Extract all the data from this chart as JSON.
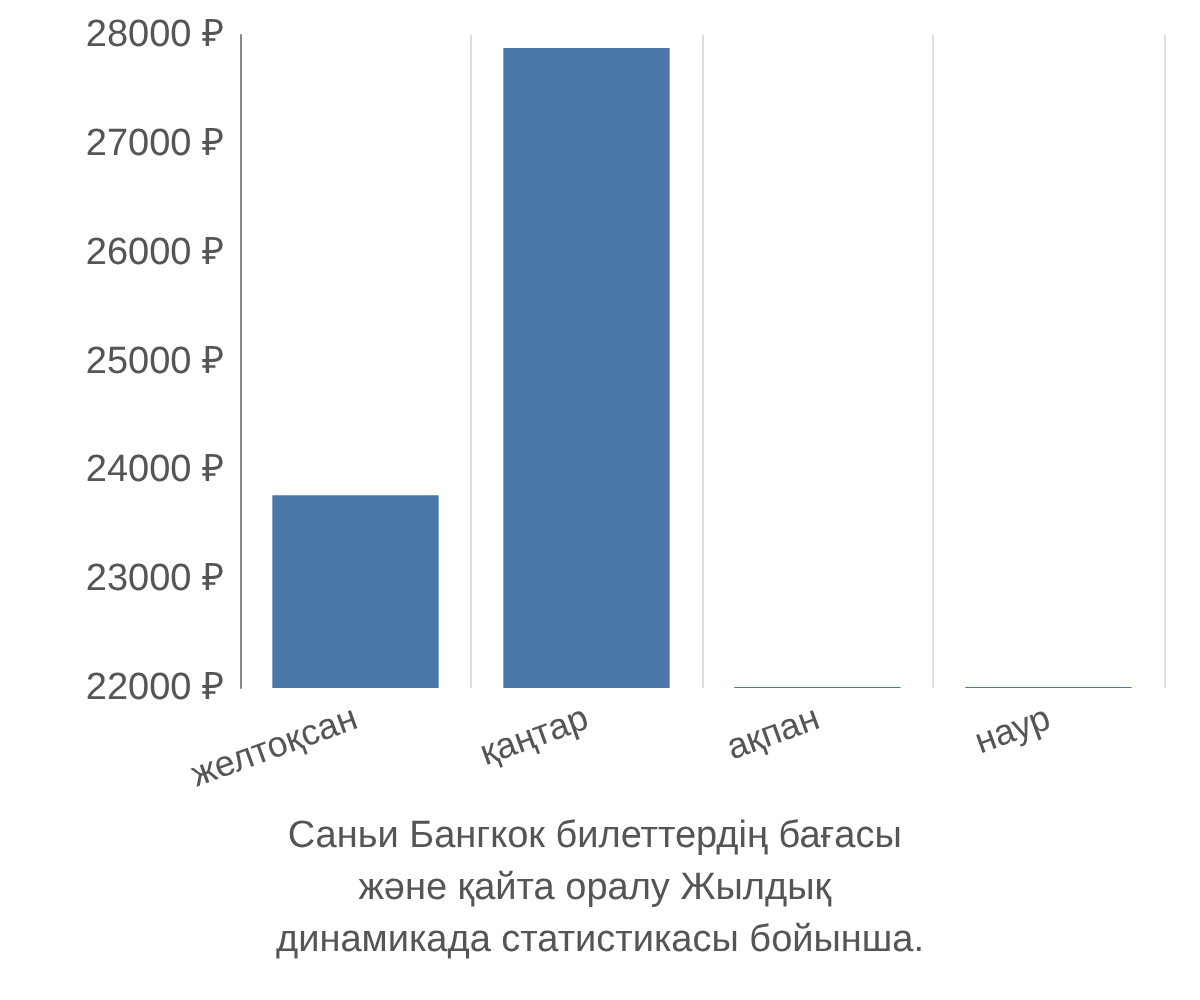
{
  "chart_data": {
    "type": "bar",
    "title": "Саньи Бангкок билеттердің бағасы және қайта оралу Жылдық динамикада статистикасы бойынша.",
    "categories": [
      "желтоқсан",
      "қаңтар",
      "ақпан",
      "наур"
    ],
    "values": [
      23770,
      27880,
      22010,
      22010
    ],
    "color": "#4a76a8",
    "ylim": [
      22000,
      28000
    ],
    "yticks": [
      {
        "value": 22000,
        "label": "22000 ₽"
      },
      {
        "value": 23000,
        "label": "23000 ₽"
      },
      {
        "value": 24000,
        "label": "24000 ₽"
      },
      {
        "value": 25000,
        "label": "25000 ₽"
      },
      {
        "value": 26000,
        "label": "26000 ₽"
      },
      {
        "value": 27000,
        "label": "27000 ₽"
      },
      {
        "value": 28000,
        "label": "28000 ₽"
      }
    ],
    "grid": "x"
  }
}
